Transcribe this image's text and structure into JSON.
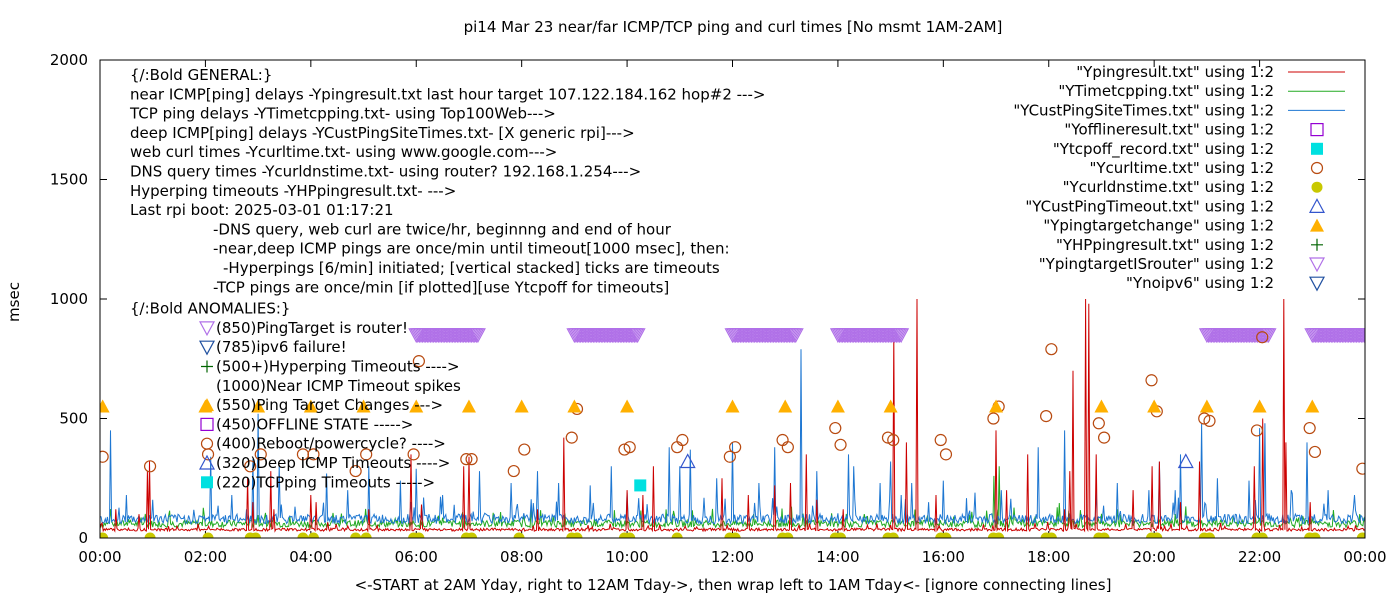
{
  "chart_data": {
    "type": "line",
    "title": "pi14 Mar 23  near/far ICMP/TCP ping and curl times [No msmt 1AM-2AM]",
    "xlabel": "<-START at 2AM Yday, right to 12AM Tday->, then wrap left to 1AM Tday<- [ignore connecting lines]",
    "ylabel": "msec",
    "xlim": [
      0,
      24
    ],
    "ylim": [
      0,
      2000
    ],
    "x_ticks": [
      0,
      2,
      4,
      6,
      8,
      10,
      12,
      14,
      16,
      18,
      20,
      22,
      24
    ],
    "x_tick_labels": [
      "00:00",
      "02:00",
      "04:00",
      "06:00",
      "08:00",
      "10:00",
      "12:00",
      "14:00",
      "16:00",
      "18:00",
      "20:00",
      "22:00",
      "00:00"
    ],
    "y_ticks": [
      0,
      500,
      1000,
      1500,
      2000
    ],
    "y_tick_labels": [
      "0",
      "500",
      "1000",
      "1500",
      "2000"
    ],
    "legend_position": "top-right",
    "legend": [
      {
        "label": "\"Ypingresult.txt\" using 1:2",
        "type": "line",
        "color": "#cc0000"
      },
      {
        "label": "\"YTimetcpping.txt\" using 1:2",
        "type": "line",
        "color": "#22aa22"
      },
      {
        "label": "\"YCustPingSiteTimes.txt\" using 1:2",
        "type": "line",
        "color": "#1e77d2"
      },
      {
        "label": "\"Yofflineresult.txt\" using 1:2",
        "type": "open-square",
        "color": "#9400d3"
      },
      {
        "label": "\"Ytcpoff_record.txt\" using 1:2",
        "type": "filled-square",
        "color": "#00e0e0"
      },
      {
        "label": "\"Ycurltime.txt\" using 1:2",
        "type": "open-circle",
        "color": "#b84a10"
      },
      {
        "label": "\"Ycurldnstime.txt\" using 1:2",
        "type": "filled-circle",
        "color": "#c8c800"
      },
      {
        "label": "\"YCustPingTimeout.txt\" using 1:2",
        "type": "open-triangle",
        "color": "#3355cc"
      },
      {
        "label": "\"Ypingtargetchange\" using 1:2",
        "type": "filled-triangle",
        "color": "#ffb000"
      },
      {
        "label": "\"YHPpingresult.txt\" using 1:2",
        "type": "plus",
        "color": "#006400"
      },
      {
        "label": "\"YpingtargetISrouter\" using 1:2",
        "type": "open-down-triangle",
        "color": "#b070e8"
      },
      {
        "label": "\"Ynoipv6\" using 1:2",
        "type": "open-down-triangle",
        "color": "#2050a0"
      }
    ],
    "annotations": [
      "{/:Bold GENERAL:}",
      "near ICMP[ping] delays -Ypingresult.txt last hour target 107.122.184.162 hop#2 --->",
      "TCP ping delays -YTimetcpping.txt- using Top100Web--->",
      "deep ICMP[ping] delays -YCustPingSiteTimes.txt- [X generic rpi]--->",
      "web curl times -Ycurltime.txt- using www.google.com--->",
      "DNS query times -Ycurldnstime.txt- using router? 192.168.1.254--->",
      "Hyperping timeouts -YHPpingresult.txt- --->",
      "Last rpi boot: 2025-03-01 01:17:21",
      "-DNS query, web curl are twice/hr, beginnng and end of hour",
      "-near,deep ICMP pings are once/min until timeout[1000 msec], then:",
      "-Hyperpings [6/min] initiated; [vertical stacked] ticks are timeouts",
      "-TCP pings are once/min [if plotted][use Ytcpoff for timeouts]",
      "{/:Bold ANOMALIES:}",
      "(850)PingTarget is router!",
      "(785)ipv6 failure!",
      "(500+)Hyperping Timeouts ---->",
      "(1000)Near ICMP Timeout spikes",
      "(550)Ping Target Changes --->",
      "(450)OFFLINE STATE ----->",
      "(400)Reboot/powercycle? ---->",
      "(320)Deep ICMP Timeouts ---->",
      "(220)TCPping Timeouts ----->"
    ],
    "series": [
      {
        "name": "\"Ypingresult.txt\" using 1:2",
        "baseline": 35,
        "spikes": [
          [
            0.3,
            120
          ],
          [
            0.75,
            100
          ],
          [
            0.9,
            280
          ],
          [
            0.95,
            320
          ],
          [
            2.8,
            250
          ],
          [
            2.9,
            150
          ],
          [
            3.25,
            280
          ],
          [
            3.3,
            120
          ],
          [
            4.0,
            180
          ],
          [
            4.1,
            150
          ],
          [
            5.1,
            120
          ],
          [
            5.9,
            350
          ],
          [
            6.1,
            140
          ],
          [
            6.9,
            300
          ],
          [
            7.0,
            340
          ],
          [
            8.3,
            120
          ],
          [
            8.8,
            420
          ],
          [
            10.0,
            200
          ],
          [
            10.3,
            180
          ],
          [
            10.5,
            300
          ],
          [
            11.8,
            250
          ],
          [
            12.3,
            180
          ],
          [
            12.8,
            220
          ],
          [
            13.1,
            230
          ],
          [
            13.4,
            350
          ],
          [
            13.6,
            160
          ],
          [
            14.1,
            120
          ],
          [
            15.05,
            850
          ],
          [
            15.3,
            400
          ],
          [
            15.5,
            1000
          ],
          [
            15.85,
            180
          ],
          [
            17.0,
            450
          ],
          [
            17.2,
            200
          ],
          [
            17.6,
            350
          ],
          [
            18.3,
            120
          ],
          [
            18.4,
            280
          ],
          [
            18.45,
            700
          ],
          [
            18.7,
            1000
          ],
          [
            18.75,
            980
          ],
          [
            18.9,
            350
          ],
          [
            19.6,
            200
          ],
          [
            19.95,
            300
          ],
          [
            20.1,
            320
          ],
          [
            20.5,
            150
          ],
          [
            20.85,
            320
          ],
          [
            21.9,
            300
          ],
          [
            22.05,
            500
          ],
          [
            22.45,
            1000
          ],
          [
            22.5,
            400
          ],
          [
            22.95,
            150
          ]
        ]
      },
      {
        "name": "\"YTimetcpping.txt\" using 1:2",
        "baseline": 60,
        "spikes": [
          [
            1.3,
            90
          ],
          [
            3.6,
            90
          ],
          [
            6.5,
            85
          ],
          [
            8.6,
            90
          ],
          [
            10.9,
            95
          ],
          [
            12.4,
            100
          ],
          [
            14.5,
            100
          ],
          [
            16.2,
            90
          ],
          [
            16.95,
            260
          ],
          [
            17.05,
            300
          ],
          [
            19.3,
            120
          ],
          [
            20.4,
            100
          ],
          [
            21.5,
            90
          ],
          [
            22.7,
            80
          ],
          [
            23.9,
            100
          ]
        ]
      },
      {
        "name": "\"YCustPingSiteTimes.txt\" using 1:2",
        "baseline": 80,
        "spikes": [
          [
            0.2,
            450
          ],
          [
            0.5,
            180
          ],
          [
            1.0,
            160
          ],
          [
            2.1,
            340
          ],
          [
            2.5,
            180
          ],
          [
            2.9,
            330
          ],
          [
            3.0,
            520
          ],
          [
            3.4,
            300
          ],
          [
            4.3,
            270
          ],
          [
            4.7,
            200
          ],
          [
            5.1,
            300
          ],
          [
            5.7,
            240
          ],
          [
            6.0,
            290
          ],
          [
            6.5,
            180
          ],
          [
            7.2,
            280
          ],
          [
            7.8,
            230
          ],
          [
            8.3,
            280
          ],
          [
            8.7,
            230
          ],
          [
            9.3,
            220
          ],
          [
            9.7,
            300
          ],
          [
            10.0,
            190
          ],
          [
            10.8,
            380
          ],
          [
            11.0,
            300
          ],
          [
            11.2,
            370
          ],
          [
            11.7,
            250
          ],
          [
            12.0,
            400
          ],
          [
            12.5,
            230
          ],
          [
            12.8,
            380
          ],
          [
            13.3,
            790
          ],
          [
            13.6,
            280
          ],
          [
            14.2,
            350
          ],
          [
            14.3,
            300
          ],
          [
            14.8,
            230
          ],
          [
            15.0,
            320
          ],
          [
            15.2,
            180
          ],
          [
            15.4,
            230
          ],
          [
            16.0,
            240
          ],
          [
            16.6,
            190
          ],
          [
            17.1,
            200
          ],
          [
            17.8,
            380
          ],
          [
            18.3,
            450
          ],
          [
            18.9,
            210
          ],
          [
            19.3,
            230
          ],
          [
            19.9,
            200
          ],
          [
            20.1,
            320
          ],
          [
            20.4,
            200
          ],
          [
            20.5,
            350
          ],
          [
            20.9,
            480
          ],
          [
            21.2,
            250
          ],
          [
            21.8,
            240
          ],
          [
            22.0,
            460
          ],
          [
            22.1,
            480
          ],
          [
            22.6,
            200
          ],
          [
            22.9,
            400
          ],
          [
            23.3,
            200
          ],
          [
            23.8,
            180
          ]
        ]
      },
      {
        "name": "\"Ycurltime.txt\" using 1:2",
        "points": [
          [
            0.05,
            340
          ],
          [
            0.95,
            300
          ],
          [
            2.05,
            350
          ],
          [
            2.85,
            300
          ],
          [
            3.05,
            350
          ],
          [
            3.85,
            350
          ],
          [
            4.05,
            350
          ],
          [
            4.85,
            280
          ],
          [
            5.05,
            350
          ],
          [
            5.95,
            350
          ],
          [
            6.05,
            740
          ],
          [
            6.95,
            330
          ],
          [
            7.05,
            330
          ],
          [
            7.85,
            280
          ],
          [
            8.05,
            370
          ],
          [
            8.95,
            420
          ],
          [
            9.05,
            540
          ],
          [
            9.95,
            370
          ],
          [
            10.05,
            380
          ],
          [
            10.95,
            380
          ],
          [
            11.05,
            410
          ],
          [
            11.95,
            340
          ],
          [
            12.05,
            380
          ],
          [
            12.95,
            410
          ],
          [
            13.05,
            380
          ],
          [
            13.95,
            460
          ],
          [
            14.05,
            390
          ],
          [
            14.95,
            420
          ],
          [
            15.05,
            410
          ],
          [
            15.95,
            410
          ],
          [
            16.05,
            350
          ],
          [
            16.95,
            500
          ],
          [
            17.05,
            550
          ],
          [
            17.95,
            510
          ],
          [
            18.05,
            790
          ],
          [
            18.95,
            480
          ],
          [
            19.05,
            420
          ],
          [
            19.95,
            660
          ],
          [
            20.05,
            530
          ],
          [
            20.95,
            500
          ],
          [
            21.05,
            490
          ],
          [
            21.95,
            450
          ],
          [
            22.05,
            840
          ],
          [
            22.95,
            460
          ],
          [
            23.05,
            360
          ],
          [
            23.95,
            290
          ]
        ]
      },
      {
        "name": "\"Ycurldnstime.txt\" using 1:2",
        "points": [
          [
            0.05,
            0
          ],
          [
            0.95,
            0
          ],
          [
            2.05,
            0
          ],
          [
            2.85,
            0
          ],
          [
            2.95,
            0
          ],
          [
            3.85,
            0
          ],
          [
            4.05,
            0
          ],
          [
            4.85,
            0
          ],
          [
            5.05,
            0
          ],
          [
            5.95,
            0
          ],
          [
            6.05,
            0
          ],
          [
            6.95,
            0
          ],
          [
            7.05,
            0
          ],
          [
            7.95,
            0
          ],
          [
            8.95,
            0
          ],
          [
            9.05,
            0
          ],
          [
            9.95,
            0
          ],
          [
            10.05,
            0
          ],
          [
            10.95,
            0
          ],
          [
            11.95,
            0
          ],
          [
            12.05,
            0
          ],
          [
            12.95,
            0
          ],
          [
            13.05,
            0
          ],
          [
            13.95,
            0
          ],
          [
            14.05,
            0
          ],
          [
            14.95,
            0
          ],
          [
            15.05,
            0
          ],
          [
            15.95,
            0
          ],
          [
            16.05,
            0
          ],
          [
            16.95,
            0
          ],
          [
            17.05,
            0
          ],
          [
            17.95,
            0
          ],
          [
            18.05,
            0
          ],
          [
            18.95,
            0
          ],
          [
            19.05,
            0
          ],
          [
            19.95,
            0
          ],
          [
            20.05,
            0
          ],
          [
            20.95,
            0
          ],
          [
            21.05,
            0
          ],
          [
            21.95,
            0
          ],
          [
            22.05,
            0
          ],
          [
            22.95,
            0
          ],
          [
            23.05,
            0
          ],
          [
            23.95,
            0
          ]
        ]
      },
      {
        "name": "\"Ytcpoff_record.txt\" using 1:2",
        "points": [
          [
            10.25,
            220
          ]
        ]
      },
      {
        "name": "\"YCustPingTimeout.txt\" using 1:2",
        "points": [
          [
            11.15,
            320
          ],
          [
            20.6,
            320
          ]
        ]
      },
      {
        "name": "\"Ypingtargetchange\" using 1:2",
        "points": [
          [
            0.05,
            550
          ],
          [
            2.0,
            550
          ],
          [
            3.0,
            550
          ],
          [
            4.0,
            550
          ],
          [
            5.0,
            550
          ],
          [
            6.0,
            550
          ],
          [
            7.0,
            550
          ],
          [
            8.0,
            550
          ],
          [
            9.0,
            550
          ],
          [
            10.0,
            550
          ],
          [
            12.0,
            550
          ],
          [
            13.0,
            550
          ],
          [
            14.0,
            550
          ],
          [
            15.0,
            550
          ],
          [
            17.0,
            550
          ],
          [
            19.0,
            550
          ],
          [
            20.0,
            550
          ],
          [
            21.0,
            550
          ],
          [
            22.0,
            550
          ],
          [
            23.0,
            550
          ]
        ]
      },
      {
        "name": "\"YpingtargetISrouter\" using 1:2",
        "ranges": [
          [
            6.0,
            7.2,
            850
          ],
          [
            9.0,
            10.2,
            850
          ],
          [
            12.0,
            13.2,
            850
          ],
          [
            14.0,
            15.2,
            850
          ],
          [
            21.0,
            22.2,
            850
          ],
          [
            23.0,
            24.2,
            850
          ]
        ]
      }
    ]
  }
}
